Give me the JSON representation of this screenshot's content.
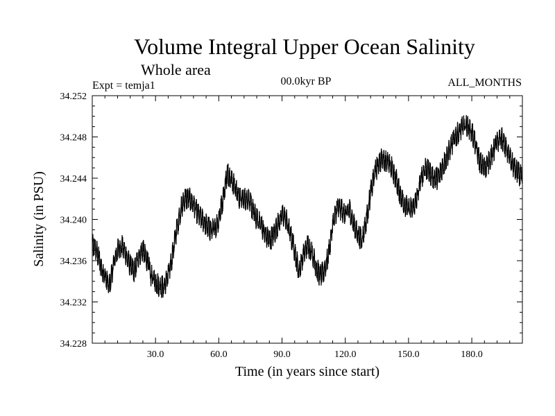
{
  "chart_data": {
    "type": "line",
    "title": "Volume Integral Upper Ocean Salinity",
    "subtitle": "Whole area",
    "left_label": "Expt = temja1",
    "center_label": "00.0kyr BP",
    "right_label": "ALL_MONTHS",
    "xlabel": "Time (in years since start)",
    "ylabel": "Salinity (in PSU)",
    "xlim": [
      0,
      204
    ],
    "ylim": [
      34.228,
      34.252
    ],
    "x_ticks": [
      30,
      60,
      90,
      120,
      150,
      180
    ],
    "x_tick_labels": [
      "30.0",
      "60.0",
      "90.0",
      "120.0",
      "150.0",
      "180.0"
    ],
    "y_ticks": [
      34.228,
      34.232,
      34.236,
      34.24,
      34.244,
      34.248,
      34.252
    ],
    "y_tick_labels": [
      "34.228",
      "34.232",
      "34.236",
      "34.240",
      "34.244",
      "34.248",
      "34.252"
    ],
    "series": [
      {
        "name": "salinity",
        "color": "#000000",
        "x": [
          0,
          2,
          4,
          6,
          8,
          10,
          12,
          14,
          16,
          18,
          20,
          22,
          24,
          26,
          28,
          30,
          32,
          34,
          36,
          38,
          40,
          42,
          44,
          46,
          48,
          50,
          52,
          54,
          56,
          58,
          60,
          62,
          64,
          66,
          68,
          70,
          72,
          74,
          76,
          78,
          80,
          82,
          84,
          86,
          88,
          90,
          92,
          94,
          96,
          98,
          100,
          102,
          104,
          106,
          108,
          110,
          112,
          114,
          116,
          118,
          120,
          122,
          124,
          126,
          128,
          130,
          132,
          134,
          136,
          138,
          140,
          142,
          144,
          146,
          148,
          150,
          152,
          154,
          156,
          158,
          160,
          162,
          164,
          166,
          168,
          170,
          172,
          174,
          176,
          178,
          180,
          182,
          184,
          186,
          188,
          190,
          192,
          194,
          196,
          198,
          200,
          202,
          204
        ],
        "y": [
          34.2375,
          34.237,
          34.2355,
          34.2345,
          34.2335,
          34.2355,
          34.237,
          34.2375,
          34.2365,
          34.2355,
          34.235,
          34.2365,
          34.237,
          34.236,
          34.2345,
          34.234,
          34.2335,
          34.2335,
          34.2345,
          34.2365,
          34.239,
          34.241,
          34.242,
          34.242,
          34.2415,
          34.2405,
          34.24,
          34.2395,
          34.239,
          34.239,
          34.24,
          34.242,
          34.2445,
          34.244,
          34.243,
          34.242,
          34.242,
          34.242,
          34.241,
          34.24,
          34.2395,
          34.2385,
          34.238,
          34.2385,
          34.2395,
          34.2405,
          34.24,
          34.2385,
          34.237,
          34.235,
          34.2365,
          34.2375,
          34.237,
          34.2355,
          34.2345,
          34.235,
          34.2365,
          34.2395,
          34.241,
          34.241,
          34.2405,
          34.241,
          34.2395,
          34.2385,
          34.238,
          34.24,
          34.2425,
          34.2445,
          34.2455,
          34.246,
          34.2455,
          34.245,
          34.244,
          34.2425,
          34.2415,
          34.241,
          34.241,
          34.242,
          34.244,
          34.245,
          34.2445,
          34.244,
          34.244,
          34.245,
          34.246,
          34.247,
          34.248,
          34.2485,
          34.249,
          34.249,
          34.2485,
          34.247,
          34.2455,
          34.245,
          34.2455,
          34.2465,
          34.2475,
          34.248,
          34.247,
          34.246,
          34.245,
          34.2445,
          34.244
        ]
      }
    ]
  }
}
